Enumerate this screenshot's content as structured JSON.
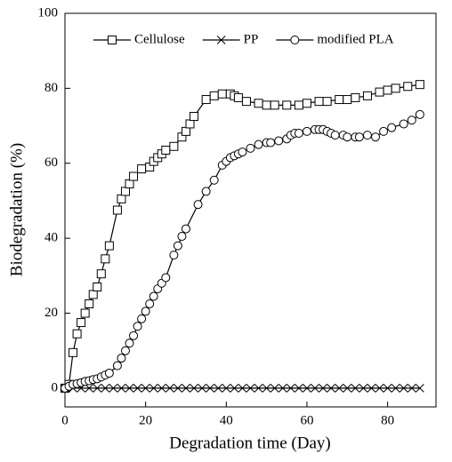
{
  "chart_data": {
    "type": "line",
    "x_label": "Degradation time (Day)",
    "y_label": "Biodegradation (%)",
    "xlim": [
      0,
      92
    ],
    "xticks": [
      0,
      20,
      40,
      60,
      80
    ],
    "ylim": [
      -5,
      100
    ],
    "yticks": [
      0,
      20,
      40,
      60,
      80,
      100
    ],
    "legend": "top",
    "series": [
      {
        "name": "Cellulose",
        "color": "#000000",
        "marker": "square",
        "x": [
          0,
          1,
          2,
          3,
          4,
          5,
          6,
          7,
          8,
          9,
          10,
          11,
          13,
          14,
          15,
          16,
          17,
          19,
          21,
          22,
          23,
          24,
          25,
          27,
          29,
          30,
          31,
          32,
          35,
          37,
          39,
          41,
          42,
          43,
          45,
          48,
          50,
          52,
          55,
          58,
          60,
          63,
          65,
          68,
          70,
          72,
          75,
          78,
          80,
          82,
          85,
          88
        ],
        "values": [
          0,
          1,
          9.5,
          14.5,
          17.5,
          20,
          22.5,
          25,
          27,
          30.5,
          34.5,
          38,
          47.5,
          50.5,
          52.5,
          54.5,
          56.5,
          58.5,
          59,
          60.5,
          61.5,
          62.5,
          63.5,
          64.5,
          67,
          68.5,
          70.5,
          72.5,
          77,
          78,
          78.5,
          78.5,
          78,
          77.5,
          76.5,
          76,
          75.5,
          75.5,
          75.5,
          75.5,
          76,
          76.5,
          76.5,
          77,
          77,
          77.5,
          78,
          79,
          79.5,
          80,
          80.5,
          81
        ]
      },
      {
        "name": "PP",
        "color": "#000000",
        "marker": "x",
        "x": [
          0,
          2,
          4,
          6,
          8,
          10,
          12,
          14,
          16,
          18,
          20,
          22,
          24,
          26,
          28,
          30,
          32,
          34,
          36,
          38,
          40,
          42,
          44,
          46,
          48,
          50,
          52,
          54,
          56,
          58,
          60,
          62,
          64,
          66,
          68,
          70,
          72,
          74,
          76,
          78,
          80,
          82,
          84,
          86,
          88
        ],
        "values": [
          0,
          0,
          0,
          0,
          0,
          0,
          0,
          0,
          0,
          0,
          0,
          0,
          0,
          0,
          0,
          0,
          0,
          0,
          0,
          0,
          0,
          0,
          0,
          0,
          0,
          0,
          0,
          0,
          0,
          0,
          0,
          0,
          0,
          0,
          0,
          0,
          0,
          0,
          0,
          0,
          0,
          0,
          0,
          0,
          0
        ]
      },
      {
        "name": "modified PLA",
        "color": "#000000",
        "marker": "circle",
        "x": [
          0,
          1,
          2,
          3,
          4,
          5,
          6,
          7,
          8,
          9,
          10,
          11,
          13,
          14,
          15,
          16,
          17,
          18,
          19,
          20,
          21,
          22,
          23,
          24,
          25,
          27,
          28,
          29,
          30,
          33,
          35,
          37,
          39,
          40,
          41,
          42,
          43,
          44,
          46,
          48,
          50,
          51,
          53,
          55,
          56,
          57,
          58,
          60,
          62,
          63,
          64,
          65,
          66,
          67,
          69,
          70,
          72,
          73,
          75,
          77,
          79,
          81,
          84,
          86,
          88
        ],
        "values": [
          0,
          0.5,
          1,
          1.2,
          1.5,
          1.8,
          2,
          2.3,
          2.5,
          3,
          3.5,
          4,
          6,
          8,
          10,
          12,
          14,
          16.5,
          18.5,
          20.5,
          22.5,
          24.5,
          26.5,
          28,
          29.5,
          35.5,
          38,
          40.5,
          42.5,
          49,
          52.5,
          55.5,
          59.5,
          60.5,
          61.5,
          62,
          62.5,
          63,
          64,
          65,
          65.5,
          65.5,
          66,
          66.5,
          67.5,
          68,
          68,
          68.5,
          69,
          69,
          69,
          68.5,
          68,
          67.5,
          67.5,
          67,
          67,
          67,
          67.5,
          67,
          68.5,
          69.5,
          70.5,
          71.5,
          73
        ]
      }
    ]
  }
}
